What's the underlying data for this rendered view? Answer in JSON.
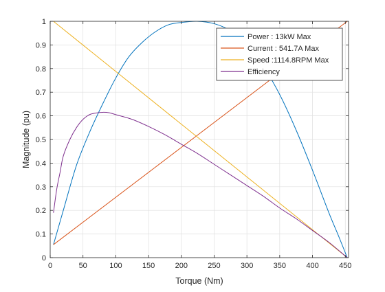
{
  "chart_data": {
    "type": "line",
    "title": "",
    "xlabel": "Torque (Nm)",
    "ylabel": "Magnitude (pu)",
    "xlim": [
      0,
      455
    ],
    "ylim": [
      0,
      1
    ],
    "xticks": [
      0,
      50,
      100,
      150,
      200,
      250,
      300,
      350,
      400,
      450
    ],
    "yticks": [
      0,
      0.1,
      0.2,
      0.3,
      0.4,
      0.5,
      0.6,
      0.7,
      0.8,
      0.9,
      1
    ],
    "xtick_labels": [
      "0",
      "50",
      "100",
      "150",
      "200",
      "250",
      "300",
      "350",
      "400",
      "450"
    ],
    "ytick_labels": [
      "0",
      "0.1",
      "0.2",
      "0.3",
      "0.4",
      "0.5",
      "0.6",
      "0.7",
      "0.8",
      "0.9",
      "1"
    ],
    "grid": true,
    "legend_position": "top-right",
    "series": [
      {
        "name": "Power : 13kW Max",
        "color": "#0072BD",
        "x": [
          5,
          20,
          40,
          60,
          80,
          100,
          120,
          140,
          160,
          180,
          200,
          224,
          250,
          275,
          300,
          325,
          350,
          375,
          400,
          425,
          440,
          453
        ],
        "y": [
          0.055,
          0.2,
          0.39,
          0.53,
          0.65,
          0.76,
          0.85,
          0.91,
          0.955,
          0.985,
          0.995,
          1.0,
          0.99,
          0.96,
          0.9,
          0.81,
          0.69,
          0.54,
          0.37,
          0.19,
          0.09,
          0.0
        ]
      },
      {
        "name": "Current : 541.7A Max",
        "color": "#D95319",
        "x": [
          5,
          453
        ],
        "y": [
          0.055,
          1.0
        ]
      },
      {
        "name": "Speed :1114.8RPM Max",
        "color": "#EDB120",
        "x": [
          5,
          453
        ],
        "y": [
          1.0,
          0.0
        ]
      },
      {
        "name": "Efficiency",
        "color": "#7E2F8E",
        "x": [
          5,
          10,
          15,
          20,
          30,
          40,
          50,
          60,
          70,
          80,
          90,
          100,
          125,
          150,
          175,
          200,
          225,
          250,
          275,
          300,
          325,
          350,
          375,
          400,
          425,
          453
        ],
        "y": [
          0.19,
          0.29,
          0.36,
          0.43,
          0.5,
          0.55,
          0.585,
          0.605,
          0.612,
          0.615,
          0.613,
          0.605,
          0.585,
          0.555,
          0.52,
          0.48,
          0.44,
          0.395,
          0.35,
          0.305,
          0.26,
          0.21,
          0.165,
          0.115,
          0.065,
          0.0
        ]
      }
    ]
  }
}
